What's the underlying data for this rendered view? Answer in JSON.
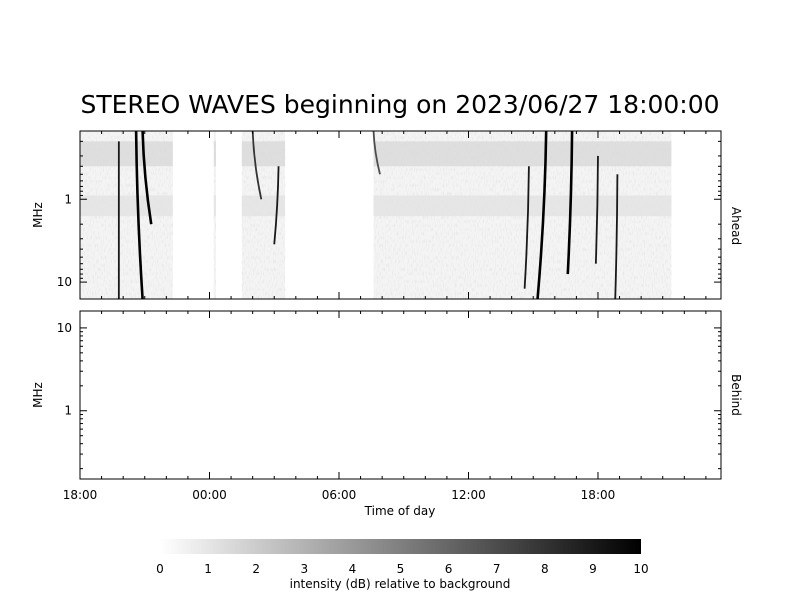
{
  "title": "STEREO WAVES beginning on 2023/06/27 18:00:00",
  "colors": {
    "ahead_label": "#dd0000",
    "behind_label": "#0000cc",
    "frame": "#000000",
    "burst": "#000000",
    "noise": "#c9c9c9"
  },
  "chart_data": [
    {
      "type": "heatmap",
      "panel": "ahead",
      "side_label": "Ahead",
      "ylabel": "MHz",
      "yscale": "log",
      "yaxis_inverted": true,
      "ylim": [
        0.15,
        16
      ],
      "yticks": [
        1,
        10
      ],
      "ytick_labels": [
        "1",
        "10"
      ],
      "xlabel": "Time of day",
      "xticks": [
        "18:00",
        "00:00",
        "06:00",
        "12:00",
        "18:00"
      ],
      "xlim_hours": [
        0,
        29.7
      ],
      "data_segments_hours": [
        [
          0,
          4.3
        ],
        [
          6.2,
          6.3
        ],
        [
          7.5,
          9.5
        ],
        [
          13.6,
          27.4
        ]
      ],
      "bursts": [
        {
          "start_hour": 1.8,
          "end_hour": 1.8,
          "fmin_mhz": 0.2,
          "fmax_mhz": 16,
          "intensity_db": 9
        },
        {
          "start_hour": 2.6,
          "end_hour": 2.9,
          "fmin_mhz": 0.15,
          "fmax_mhz": 16,
          "intensity_db": 10
        },
        {
          "start_hour": 2.9,
          "end_hour": 3.3,
          "fmin_mhz": 0.15,
          "fmax_mhz": 2.0,
          "intensity_db": 10
        },
        {
          "start_hour": 8.0,
          "end_hour": 8.4,
          "fmin_mhz": 0.15,
          "fmax_mhz": 1.0,
          "intensity_db": 8
        },
        {
          "start_hour": 9.2,
          "end_hour": 9.0,
          "fmin_mhz": 0.4,
          "fmax_mhz": 3.5,
          "intensity_db": 9
        },
        {
          "start_hour": 13.6,
          "end_hour": 13.9,
          "fmin_mhz": 0.15,
          "fmax_mhz": 0.5,
          "intensity_db": 7
        },
        {
          "start_hour": 20.8,
          "end_hour": 20.6,
          "fmin_mhz": 0.4,
          "fmax_mhz": 12,
          "intensity_db": 9
        },
        {
          "start_hour": 21.6,
          "end_hour": 21.2,
          "fmin_mhz": 0.15,
          "fmax_mhz": 16,
          "intensity_db": 10
        },
        {
          "start_hour": 22.8,
          "end_hour": 22.6,
          "fmin_mhz": 0.15,
          "fmax_mhz": 8,
          "intensity_db": 10
        },
        {
          "start_hour": 24.0,
          "end_hour": 23.9,
          "fmin_mhz": 0.3,
          "fmax_mhz": 6,
          "intensity_db": 9
        },
        {
          "start_hour": 24.9,
          "end_hour": 24.8,
          "fmin_mhz": 0.5,
          "fmax_mhz": 16,
          "intensity_db": 9
        }
      ]
    },
    {
      "type": "heatmap",
      "panel": "behind",
      "side_label": "Behind",
      "ylabel": "MHz",
      "yscale": "log",
      "ylim": [
        0.15,
        16
      ],
      "yticks": [
        1,
        10
      ],
      "ytick_labels": [
        "1",
        "10"
      ],
      "bursts": []
    },
    {
      "type": "colorbar",
      "label": "intensity (dB) relative to background",
      "range": [
        0,
        10
      ],
      "ticks": [
        "0",
        "1",
        "2",
        "3",
        "4",
        "5",
        "6",
        "7",
        "8",
        "9",
        "10"
      ]
    }
  ]
}
